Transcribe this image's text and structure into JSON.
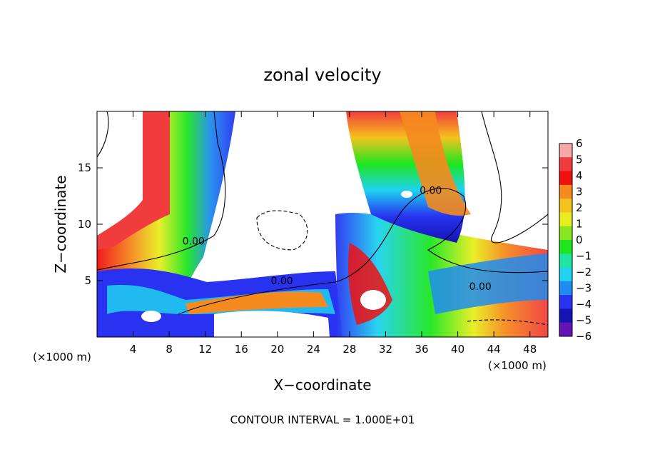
{
  "chart_data": {
    "type": "heatmap",
    "title": "zonal velocity",
    "xlabel": "X−coordinate",
    "ylabel": "Z−coordinate",
    "x_unit_label": "(×1000 m)",
    "y_unit_label": "(×1000 m)",
    "xlim": [
      0,
      50
    ],
    "ylim": [
      0,
      20
    ],
    "x_ticks": [
      4,
      8,
      12,
      16,
      20,
      24,
      28,
      32,
      36,
      40,
      44,
      48
    ],
    "y_ticks": [
      5,
      10,
      15
    ],
    "colorbar": {
      "ticks": [
        "6",
        "5",
        "4",
        "3",
        "2",
        "1",
        "0",
        "−1",
        "−2",
        "−3",
        "−4",
        "−5",
        "−6"
      ],
      "colors": [
        "#f7a8a8",
        "#f03c3c",
        "#f01010",
        "#f58a1e",
        "#f5c21e",
        "#e8ee1e",
        "#8ae61e",
        "#1ee61e",
        "#1ee6a0",
        "#1ed2f0",
        "#1e8cf0",
        "#2832f0",
        "#1414b4",
        "#6414b4"
      ]
    },
    "contour_labels": [
      {
        "text": "0.00",
        "x": 10.7,
        "z": 8.5
      },
      {
        "text": "0.00",
        "x": 20.5,
        "z": 5.0
      },
      {
        "text": "0.00",
        "x": 37.0,
        "z": 13.0
      },
      {
        "text": "0.00",
        "x": 42.5,
        "z": 4.5
      }
    ],
    "footer": "CONTOUR INTERVAL = 1.000E+01"
  }
}
